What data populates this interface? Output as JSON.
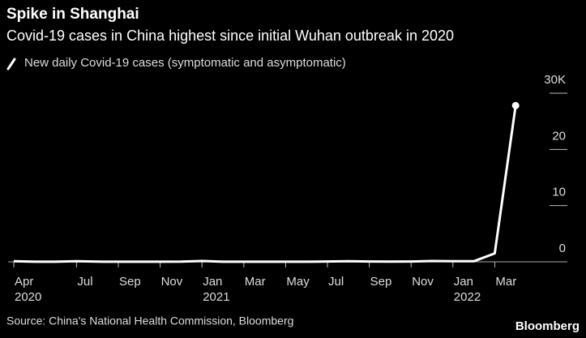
{
  "chart_data": {
    "type": "line",
    "title": "Spike in Shanghai",
    "subtitle": "Covid-19 cases in China highest since initial Wuhan outbreak in 2020",
    "source": "Source: China's National Health Commission, Bloomberg",
    "brand": "Bloomberg",
    "x": [
      "2020-04",
      "2020-05",
      "2020-06",
      "2020-07",
      "2020-08",
      "2020-09",
      "2020-10",
      "2020-11",
      "2020-12",
      "2021-01",
      "2021-02",
      "2021-03",
      "2021-04",
      "2021-05",
      "2021-06",
      "2021-07",
      "2021-08",
      "2021-09",
      "2021-10",
      "2021-11",
      "2021-12",
      "2022-01",
      "2022-02",
      "2022-03",
      "2022-04"
    ],
    "series": [
      {
        "name": "New daily Covid-19 cases (symptomatic and asymptomatic)",
        "color": "#ffffff",
        "values": [
          100,
          10,
          20,
          100,
          30,
          10,
          20,
          20,
          30,
          150,
          10,
          10,
          10,
          10,
          20,
          60,
          100,
          50,
          40,
          60,
          150,
          100,
          100,
          1500,
          27800
        ]
      }
    ],
    "xticks": [
      {
        "value": "2020-04",
        "label": "Apr"
      },
      {
        "value": "2020-07",
        "label": "Jul"
      },
      {
        "value": "2020-09",
        "label": "Sep"
      },
      {
        "value": "2020-11",
        "label": "Nov"
      },
      {
        "value": "2021-01",
        "label": "Jan"
      },
      {
        "value": "2021-03",
        "label": "Mar"
      },
      {
        "value": "2021-05",
        "label": "May"
      },
      {
        "value": "2021-07",
        "label": "Jul"
      },
      {
        "value": "2021-09",
        "label": "Sep"
      },
      {
        "value": "2021-11",
        "label": "Nov"
      },
      {
        "value": "2022-01",
        "label": "Jan"
      },
      {
        "value": "2022-03",
        "label": "Mar"
      }
    ],
    "years": [
      {
        "value": "2020-04",
        "label": "2020"
      },
      {
        "value": "2021-01",
        "label": "2021"
      },
      {
        "value": "2022-01",
        "label": "2022"
      }
    ],
    "ylim": [
      0,
      30000
    ],
    "yticks": [
      0,
      {
        "value": 10000,
        "label": "10"
      },
      {
        "value": 20000,
        "label": "20"
      },
      {
        "value": 30000,
        "label": "30K"
      }
    ]
  }
}
